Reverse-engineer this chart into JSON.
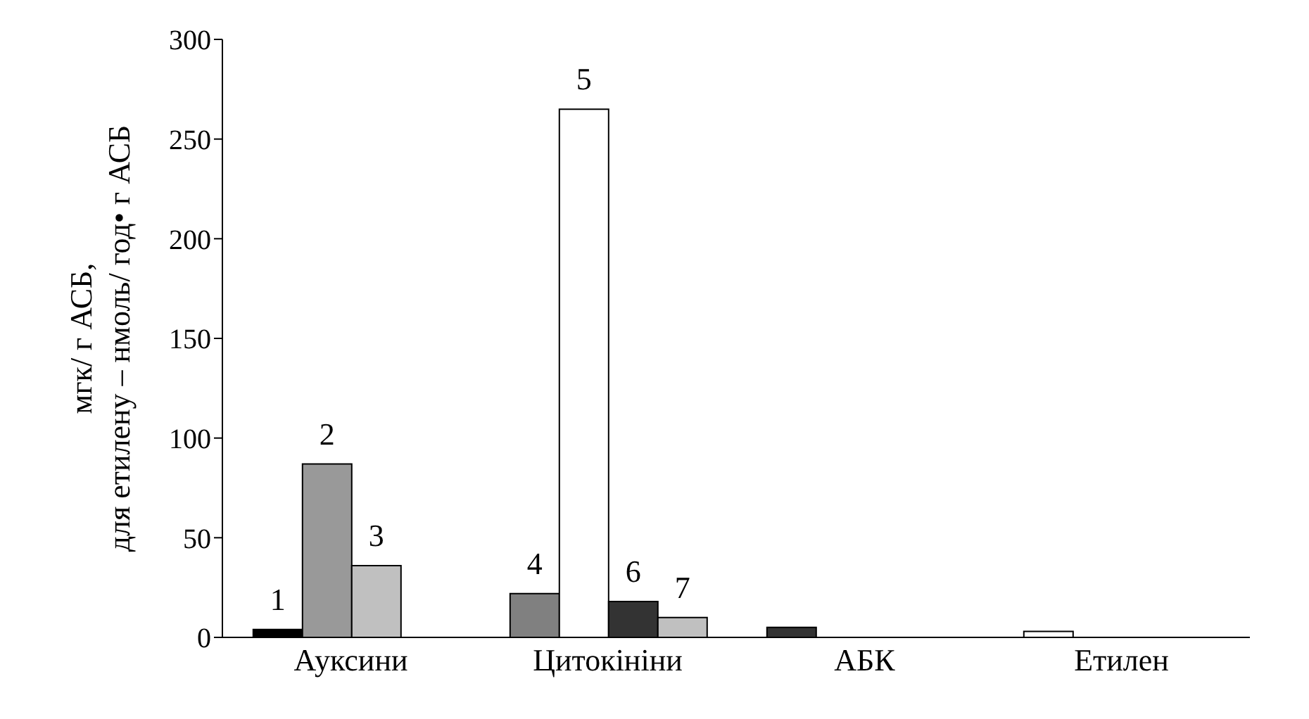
{
  "chart_data": {
    "type": "bar",
    "ylabel": "мгк/ г АСБ,\nдля етилену – нмоль/ год• г АСБ",
    "categories": [
      "Ауксини",
      "Цитокініни",
      "АБК",
      "Етилен"
    ],
    "series": [
      {
        "colors": [
          "#000000",
          "#808080",
          "#333333",
          "#ffffff"
        ],
        "values": [
          4,
          22,
          5,
          3
        ]
      },
      {
        "colors": [
          "#999999",
          "#ffffff",
          null,
          null
        ],
        "values": [
          87,
          265,
          null,
          null
        ]
      },
      {
        "colors": [
          "#c0c0c0",
          "#333333",
          null,
          null
        ],
        "values": [
          36,
          18,
          null,
          null
        ]
      },
      {
        "colors": [
          null,
          "#c0c0c0",
          null,
          null
        ],
        "values": [
          null,
          10,
          null,
          null
        ]
      }
    ],
    "annotations": [
      {
        "text": "1",
        "x": "Ауксини",
        "y": 4
      },
      {
        "text": "2",
        "x": "Ауксини",
        "y": 87
      },
      {
        "text": "3",
        "x": "Ауксини",
        "y": 36
      },
      {
        "text": "4",
        "x": "Цитокініни",
        "y": 22
      },
      {
        "text": "5",
        "x": "Цитокініни",
        "y": 265
      },
      {
        "text": "6",
        "x": "Цитокініни",
        "y": 18
      },
      {
        "text": "7",
        "x": "Цитокініни",
        "y": 10
      }
    ],
    "ylim": [
      0,
      300
    ],
    "yticks": [
      0,
      50,
      100,
      150,
      200,
      250,
      300
    ],
    "grid": false,
    "legend": false
  }
}
